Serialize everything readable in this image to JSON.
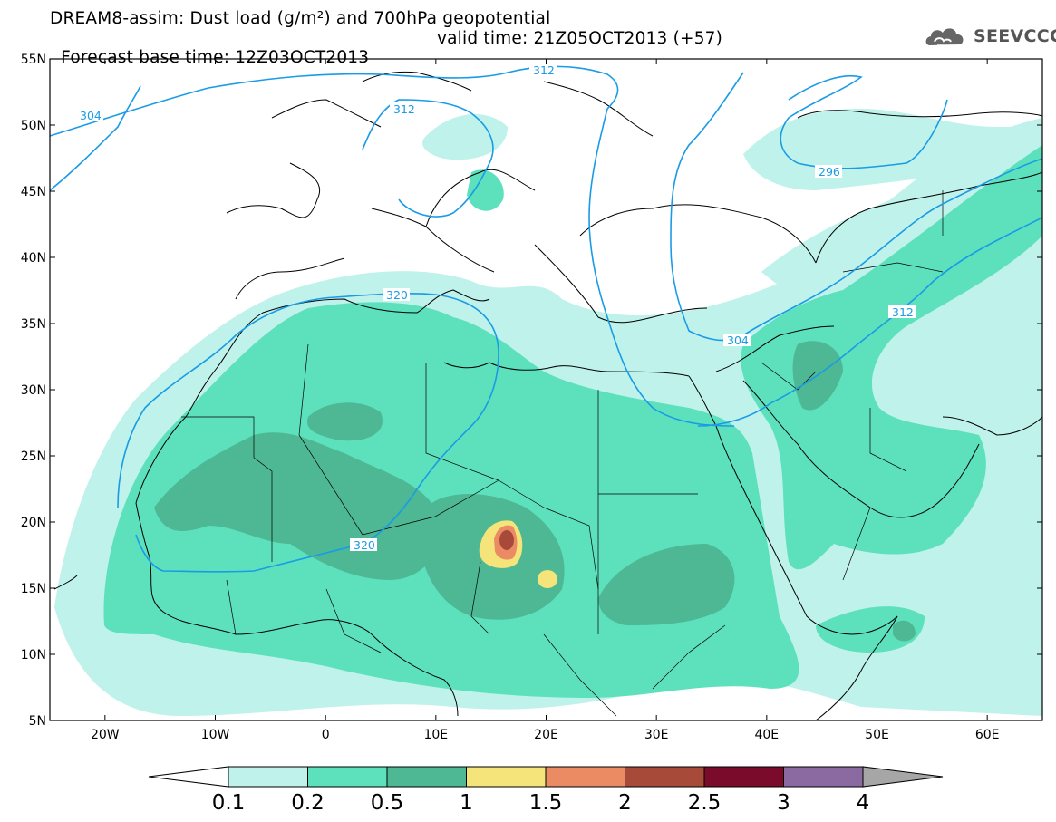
{
  "header": {
    "line1": "DREAM8-assim: Dust load (g/m²) and 700hPa geopotential",
    "base": "Forecast base time: 12Z03OCT2013",
    "valid": "valid time: 21Z05OCT2013 (+57)"
  },
  "logo": {
    "text": "SEEVCCC",
    "icon": "cloud-icon"
  },
  "map": {
    "lat_labels": [
      "55N",
      "50N",
      "45N",
      "40N",
      "35N",
      "30N",
      "25N",
      "20N",
      "15N",
      "10N",
      "5N"
    ],
    "lon_labels": [
      "20W",
      "10W",
      "0",
      "10E",
      "20E",
      "30E",
      "40E",
      "50E",
      "60E"
    ],
    "extent": {
      "lon": [
        -25,
        65
      ],
      "lat": [
        5,
        55
      ]
    },
    "contour_labels": [
      "304",
      "312",
      "312",
      "296",
      "320",
      "320",
      "304",
      "312"
    ],
    "colors": {
      "geopotential_line": "#1a9be6",
      "coastline": "#000000"
    }
  },
  "colorbar": {
    "levels": [
      "0.1",
      "0.2",
      "0.5",
      "1",
      "1.5",
      "2",
      "2.5",
      "3",
      "4"
    ],
    "colors": [
      "#bff2ea",
      "#5ce1bc",
      "#4db893",
      "#f5e47a",
      "#ea8b63",
      "#a84a3a",
      "#7a0b2b",
      "#8a6aa0"
    ],
    "under_color": "#ffffff",
    "over_color": "#a6a6a6"
  }
}
